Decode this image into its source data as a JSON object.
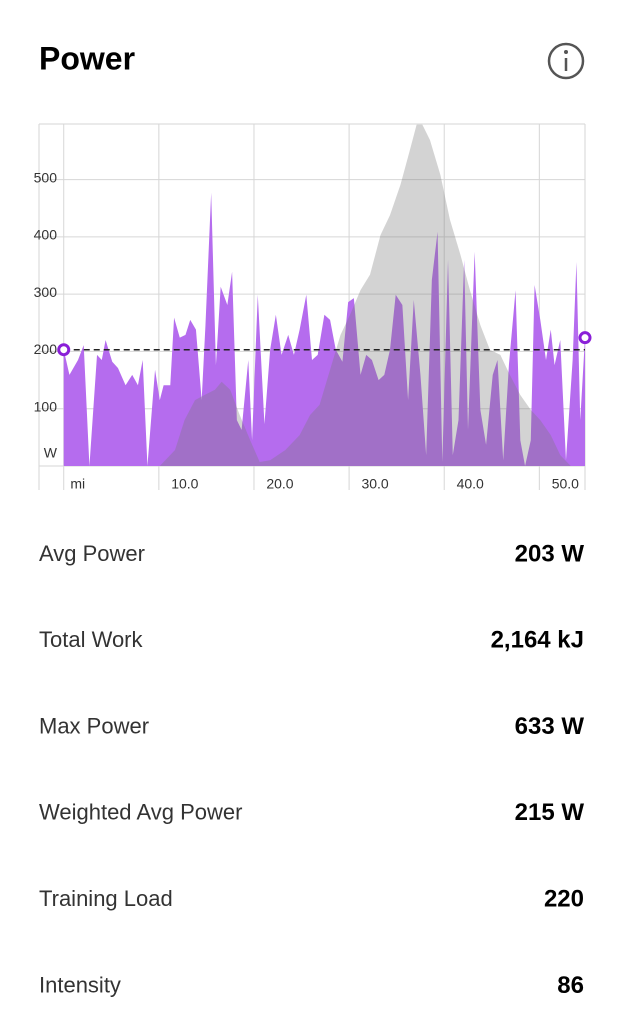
{
  "header": {
    "title": "Power"
  },
  "chart_data": {
    "type": "area",
    "xlim": [
      -2.6,
      54.8
    ],
    "ylim": [
      0,
      597
    ],
    "xticks": [
      {
        "value": 0,
        "label": "mi"
      },
      {
        "value": 10,
        "label": "10.0"
      },
      {
        "value": 20,
        "label": "20.0"
      },
      {
        "value": 30,
        "label": "30.0"
      },
      {
        "value": 40,
        "label": "40.0"
      },
      {
        "value": 50,
        "label": "50.0"
      }
    ],
    "yticks": [
      {
        "value": 0,
        "label": "W"
      },
      100,
      200,
      300,
      400,
      500
    ],
    "grid": true,
    "avg_line": 203,
    "series": [
      {
        "color": "#b56cee",
        "x": [
          0,
          0.6,
          1.5,
          2.1,
          2.7,
          3.5,
          4.0,
          4.4,
          5.1,
          5.7,
          6.5,
          7.2,
          7.8,
          8.3,
          8.8,
          9.6,
          10.1,
          10.5,
          11.2,
          11.6,
          12.2,
          12.8,
          13.3,
          13.9,
          14.5,
          14.9,
          15.5,
          16.0,
          16.5,
          17.2,
          17.7,
          18.2,
          18.7,
          19.4,
          19.8,
          20.4,
          21.1,
          21.7,
          22.3,
          22.9,
          23.6,
          24.2,
          24.8,
          25.5,
          26.1,
          26.7,
          27.4,
          28.0,
          28.6,
          29.3,
          29.9,
          30.5,
          31.2,
          31.8,
          32.4,
          33.1,
          33.7,
          34.3,
          34.9,
          35.6,
          36.2,
          36.8,
          37.5,
          38.1,
          38.7,
          39.3,
          39.8,
          40.4,
          40.9,
          41.5,
          42.1,
          42.5,
          43.2,
          43.8,
          44.4,
          45.1,
          45.6,
          46.2,
          46.8,
          47.5,
          48.0,
          48.5,
          49.1,
          49.5,
          50.1,
          50.7,
          51.2,
          51.6,
          52.2,
          52.8,
          53.5,
          53.9,
          54.3,
          54.8
        ],
        "values": [
          203,
          159,
          185,
          211,
          0,
          194,
          185,
          220,
          182,
          171,
          141,
          159,
          141,
          185,
          0,
          168,
          115,
          141,
          141,
          259,
          224,
          229,
          255,
          238,
          115,
          246,
          477,
          176,
          313,
          281,
          339,
          80,
          63,
          185,
          45,
          299,
          73,
          203,
          264,
          194,
          229,
          194,
          238,
          299,
          185,
          194,
          264,
          255,
          203,
          182,
          286,
          293,
          159,
          194,
          185,
          150,
          159,
          203,
          299,
          281,
          115,
          290,
          159,
          19,
          325,
          409,
          7,
          360,
          19,
          80,
          360,
          63,
          374,
          98,
          37,
          159,
          185,
          10,
          176,
          307,
          45,
          0,
          45,
          316,
          255,
          185,
          238,
          176,
          220,
          10,
          185,
          356,
          80,
          224
        ]
      },
      {
        "color": "#787878",
        "x": [
          0,
          3.8,
          10.1,
          11.7,
          12.7,
          13.8,
          14.8,
          15.9,
          16.6,
          17.5,
          18.5,
          19.6,
          20.6,
          21.7,
          23.3,
          24.8,
          25.9,
          26.9,
          28.0,
          29.1,
          30.1,
          31.2,
          32.2,
          33.3,
          34.3,
          35.4,
          36.4,
          37.1,
          37.7,
          38.5,
          39.6,
          40.6,
          41.7,
          42.7,
          43.8,
          44.8,
          45.9,
          46.9,
          48.0,
          49.1,
          50.1,
          51.2,
          52.2,
          53.3,
          54.8
        ],
        "values": [
          0,
          0,
          0,
          28,
          80,
          115,
          124,
          133,
          147,
          133,
          89,
          45,
          7,
          10,
          28,
          54,
          89,
          107,
          168,
          229,
          264,
          307,
          334,
          403,
          438,
          491,
          552,
          596,
          596,
          569,
          508,
          430,
          369,
          307,
          246,
          203,
          194,
          159,
          124,
          98,
          80,
          54,
          19,
          0,
          0
        ]
      }
    ]
  },
  "stats": [
    {
      "label": "Avg Power",
      "value": "203 W"
    },
    {
      "label": "Total Work",
      "value": "2,164 kJ"
    },
    {
      "label": "Max Power",
      "value": "633 W"
    },
    {
      "label": "Weighted Avg Power",
      "value": "215 W"
    },
    {
      "label": "Training Load",
      "value": "220"
    },
    {
      "label": "Intensity",
      "value": "86"
    }
  ]
}
